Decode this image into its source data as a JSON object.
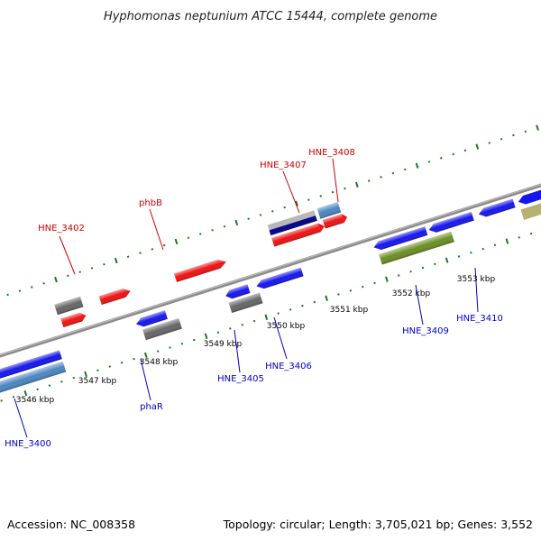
{
  "title": "Hyphomonas neptunium ATCC 15444, complete genome",
  "footer": {
    "accession": "Accession: NC_008358",
    "summary": "Topology: circular; Length: 3,705,021 bp; Genes: 3,552"
  },
  "ticks": [
    "3546 kbp",
    "3547 kbp",
    "3548 kbp",
    "3549 kbp",
    "3550 kbp",
    "3551 kbp",
    "3552 kbp",
    "3553 kbp"
  ],
  "labels_top": [
    "HNE_3402",
    "phbB",
    "HNE_3407",
    "HNE_3408"
  ],
  "labels_bottom": [
    "HNE_3400",
    "HNE_3405",
    "phaR",
    "HNE_3406",
    "HNE_3409",
    "HNE_3410"
  ],
  "colors": {
    "red": "#ee1111",
    "blue": "#1515ee",
    "gray": "#666666",
    "steelblue": "#4a86c0",
    "olive": "#6b8e23",
    "navy": "#0a0a88",
    "silver": "#b8b8b8",
    "tan": "#b8b070",
    "tick": "#1a7a1a",
    "genome": "#888888",
    "label_top": "#cc0000",
    "label_bottom": "#0000cc"
  }
}
